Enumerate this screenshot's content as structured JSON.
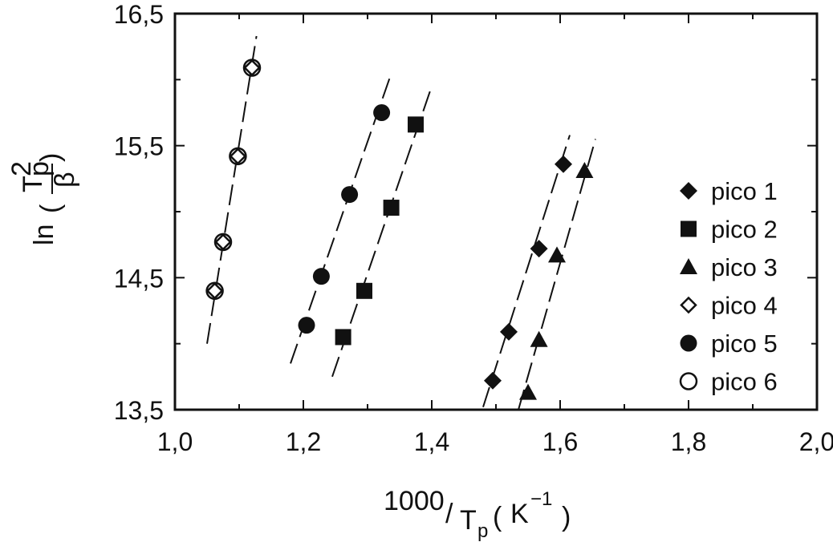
{
  "chart_data": {
    "type": "scatter",
    "xlabel": {
      "prefix": "1000",
      "slash": "/",
      "var": "T",
      "var_sub": "p",
      "unit": "K",
      "unit_sup": "−1"
    },
    "ylabel": {
      "fn": "ln",
      "num": "T",
      "num_sup": "2",
      "num_sub": "p",
      "den": "β"
    },
    "xlim": [
      1.0,
      2.0
    ],
    "ylim": [
      13.5,
      16.5
    ],
    "x_ticks": [
      "1,0",
      "1,2",
      "1,4",
      "1,6",
      "1,8",
      "2,0"
    ],
    "y_ticks": [
      "13,5",
      "14,5",
      "15,5",
      "16,5"
    ],
    "x_tick_values": [
      1.0,
      1.2,
      1.4,
      1.6,
      1.8,
      2.0
    ],
    "y_tick_values": [
      13.5,
      14.5,
      15.5,
      16.5
    ],
    "legend_position": "right",
    "grid": false,
    "series": [
      {
        "name": "pico 1",
        "marker": "diamond-filled",
        "points": [
          [
            1.495,
            13.72
          ],
          [
            1.52,
            14.09
          ],
          [
            1.567,
            14.72
          ],
          [
            1.605,
            15.36
          ]
        ],
        "fit": [
          [
            1.48,
            13.52
          ],
          [
            1.615,
            15.58
          ]
        ]
      },
      {
        "name": "pico 2",
        "marker": "square-filled",
        "points": [
          [
            1.262,
            14.05
          ],
          [
            1.295,
            14.4
          ],
          [
            1.337,
            15.03
          ],
          [
            1.375,
            15.66
          ]
        ],
        "fit": [
          [
            1.245,
            13.75
          ],
          [
            1.4,
            15.95
          ]
        ]
      },
      {
        "name": "pico 3",
        "marker": "triangle-filled",
        "points": [
          [
            1.55,
            13.63
          ],
          [
            1.567,
            14.03
          ],
          [
            1.595,
            14.67
          ],
          [
            1.638,
            15.31
          ]
        ],
        "fit": [
          [
            1.535,
            13.5
          ],
          [
            1.655,
            15.55
          ]
        ]
      },
      {
        "name": "pico 4",
        "marker": "diamond-open",
        "points": [
          [
            1.062,
            14.4
          ],
          [
            1.075,
            14.77
          ],
          [
            1.098,
            15.42
          ],
          [
            1.12,
            16.09
          ]
        ],
        "fit": [
          [
            1.05,
            14.0
          ],
          [
            1.127,
            16.33
          ]
        ]
      },
      {
        "name": "pico 5",
        "marker": "circle-filled",
        "points": [
          [
            1.205,
            14.14
          ],
          [
            1.228,
            14.51
          ],
          [
            1.272,
            15.13
          ],
          [
            1.322,
            15.75
          ]
        ],
        "fit": [
          [
            1.18,
            13.85
          ],
          [
            1.335,
            16.02
          ]
        ]
      },
      {
        "name": "pico 6",
        "marker": "circle-open",
        "points": [
          [
            1.062,
            14.4
          ],
          [
            1.075,
            14.77
          ],
          [
            1.098,
            15.42
          ],
          [
            1.12,
            16.09
          ]
        ],
        "fit": null
      }
    ]
  }
}
